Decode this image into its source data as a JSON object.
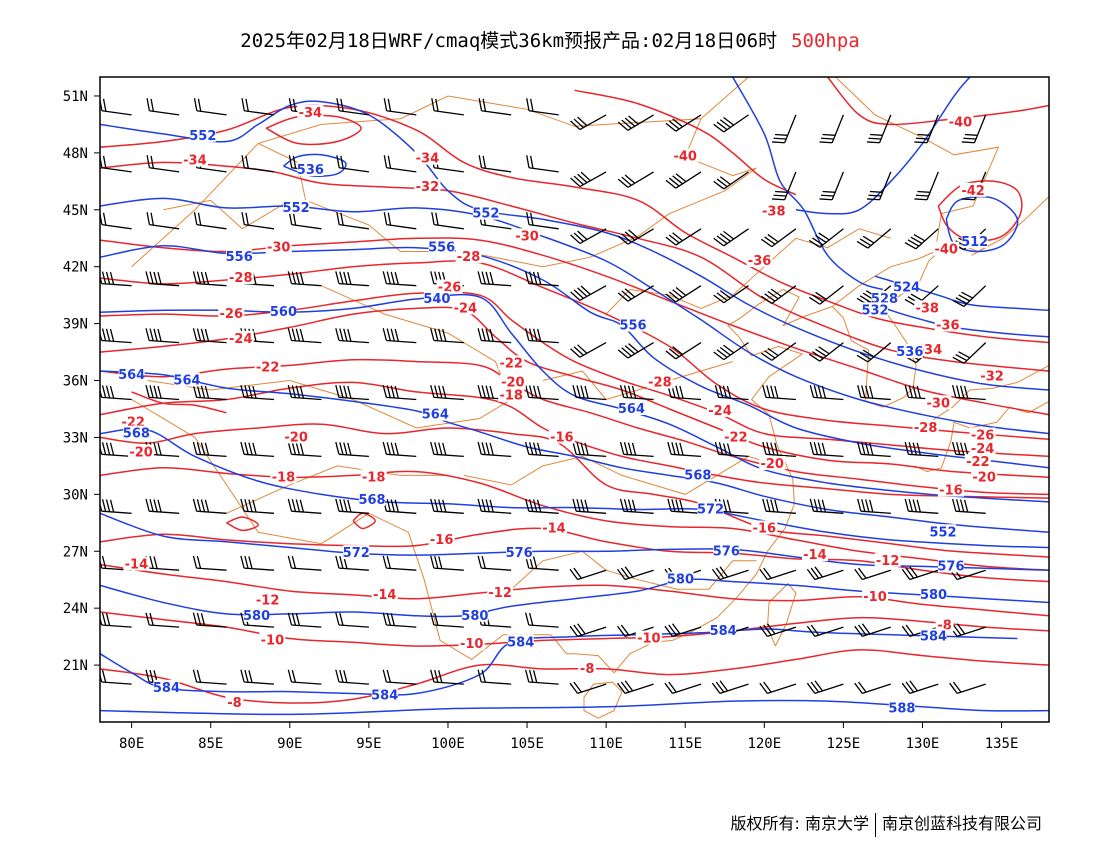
{
  "title": {
    "main": "2025年02月18日WRF/cmaq模式36km预报产品:02月18日06时",
    "level": "500hpa"
  },
  "colors": {
    "geopotential": "#1f3fe0",
    "temperature": "#e8262c",
    "coastline": "#e0893a",
    "barbs": "#000000",
    "level_text": "#e8262c"
  },
  "axes": {
    "lon_labels": [
      "80E",
      "85E",
      "90E",
      "95E",
      "100E",
      "105E",
      "110E",
      "115E",
      "120E",
      "125E",
      "130E",
      "135E"
    ],
    "lat_labels": [
      "51N",
      "48N",
      "45N",
      "42N",
      "39N",
      "36N",
      "33N",
      "30N",
      "27N",
      "24N",
      "21N"
    ],
    "lon_values": [
      80,
      85,
      90,
      95,
      100,
      105,
      110,
      115,
      120,
      125,
      130,
      135
    ],
    "lat_values": [
      51,
      48,
      45,
      42,
      39,
      36,
      33,
      30,
      27,
      24,
      21
    ],
    "lon_range": [
      78,
      138
    ],
    "lat_range": [
      18,
      52
    ]
  },
  "height_labels": [
    {
      "text": "552",
      "lon": 84.5,
      "lat": 48.9
    },
    {
      "text": "552",
      "lon": 90.4,
      "lat": 45.1
    },
    {
      "text": "552",
      "lon": 102.4,
      "lat": 44.8
    },
    {
      "text": "556",
      "lon": 86.8,
      "lat": 42.5
    },
    {
      "text": "556",
      "lon": 99.6,
      "lat": 43.0
    },
    {
      "text": "560",
      "lon": 89.6,
      "lat": 39.6
    },
    {
      "text": "540",
      "lon": 99.3,
      "lat": 40.3
    },
    {
      "text": "556",
      "lon": 111.7,
      "lat": 38.9
    },
    {
      "text": "564",
      "lon": 80.0,
      "lat": 36.3
    },
    {
      "text": "564",
      "lon": 83.5,
      "lat": 36.0
    },
    {
      "text": "564",
      "lon": 99.2,
      "lat": 34.2
    },
    {
      "text": "564",
      "lon": 111.6,
      "lat": 34.5
    },
    {
      "text": "568",
      "lon": 80.3,
      "lat": 33.2
    },
    {
      "text": "568",
      "lon": 95.2,
      "lat": 29.7
    },
    {
      "text": "568",
      "lon": 115.8,
      "lat": 31.0
    },
    {
      "text": "572",
      "lon": 94.2,
      "lat": 26.9
    },
    {
      "text": "572",
      "lon": 116.6,
      "lat": 29.2
    },
    {
      "text": "576",
      "lon": 104.5,
      "lat": 26.9
    },
    {
      "text": "576",
      "lon": 117.6,
      "lat": 27.0
    },
    {
      "text": "576",
      "lon": 131.8,
      "lat": 26.2
    },
    {
      "text": "580",
      "lon": 87.9,
      "lat": 23.6
    },
    {
      "text": "580",
      "lon": 101.7,
      "lat": 23.6
    },
    {
      "text": "580",
      "lon": 114.7,
      "lat": 25.5
    },
    {
      "text": "580",
      "lon": 130.7,
      "lat": 24.7
    },
    {
      "text": "584",
      "lon": 82.2,
      "lat": 19.8
    },
    {
      "text": "584",
      "lon": 96.0,
      "lat": 19.4
    },
    {
      "text": "584",
      "lon": 104.6,
      "lat": 22.2
    },
    {
      "text": "584",
      "lon": 117.4,
      "lat": 22.8
    },
    {
      "text": "584",
      "lon": 130.7,
      "lat": 22.5
    },
    {
      "text": "588",
      "lon": 128.7,
      "lat": 18.7
    },
    {
      "text": "536",
      "lon": 91.3,
      "lat": 47.1
    },
    {
      "text": "512",
      "lon": 133.3,
      "lat": 43.3
    },
    {
      "text": "524",
      "lon": 129.0,
      "lat": 40.9
    },
    {
      "text": "528",
      "lon": 127.6,
      "lat": 40.3
    },
    {
      "text": "532",
      "lon": 127.0,
      "lat": 39.7
    },
    {
      "text": "536",
      "lon": 129.2,
      "lat": 37.5
    },
    {
      "text": "552",
      "lon": 131.3,
      "lat": 28.0
    }
  ],
  "temperature_labels": [
    {
      "text": "-34",
      "lon": 91.3,
      "lat": 50.1
    },
    {
      "text": "-34",
      "lon": 84.0,
      "lat": 47.6
    },
    {
      "text": "-34",
      "lon": 98.7,
      "lat": 47.7
    },
    {
      "text": "-32",
      "lon": 98.7,
      "lat": 46.2
    },
    {
      "text": "-30",
      "lon": 89.3,
      "lat": 43.0
    },
    {
      "text": "-30",
      "lon": 105.0,
      "lat": 43.6
    },
    {
      "text": "-28",
      "lon": 86.9,
      "lat": 41.4
    },
    {
      "text": "-28",
      "lon": 101.3,
      "lat": 42.5
    },
    {
      "text": "-26",
      "lon": 86.3,
      "lat": 39.5
    },
    {
      "text": "-26",
      "lon": 100.1,
      "lat": 40.9
    },
    {
      "text": "-24",
      "lon": 86.9,
      "lat": 38.2
    },
    {
      "text": "-24",
      "lon": 101.1,
      "lat": 39.8
    },
    {
      "text": "-22",
      "lon": 88.6,
      "lat": 36.7
    },
    {
      "text": "-22",
      "lon": 104.0,
      "lat": 36.9
    },
    {
      "text": "-20",
      "lon": 104.1,
      "lat": 35.9
    },
    {
      "text": "-18",
      "lon": 104.0,
      "lat": 35.2
    },
    {
      "text": "-22",
      "lon": 80.1,
      "lat": 33.8
    },
    {
      "text": "-20",
      "lon": 80.6,
      "lat": 32.2
    },
    {
      "text": "-20",
      "lon": 90.4,
      "lat": 33.0
    },
    {
      "text": "-18",
      "lon": 89.6,
      "lat": 30.9
    },
    {
      "text": "-18",
      "lon": 95.3,
      "lat": 30.9
    },
    {
      "text": "-16",
      "lon": 107.2,
      "lat": 33.0
    },
    {
      "text": "-16",
      "lon": 99.6,
      "lat": 27.6
    },
    {
      "text": "-14",
      "lon": 106.7,
      "lat": 28.2
    },
    {
      "text": "-14",
      "lon": 80.3,
      "lat": 26.3
    },
    {
      "text": "-14",
      "lon": 96.0,
      "lat": 24.7
    },
    {
      "text": "-12",
      "lon": 88.6,
      "lat": 24.4
    },
    {
      "text": "-12",
      "lon": 103.3,
      "lat": 24.8
    },
    {
      "text": "-10",
      "lon": 88.9,
      "lat": 22.3
    },
    {
      "text": "-10",
      "lon": 101.5,
      "lat": 22.1
    },
    {
      "text": "-10",
      "lon": 112.7,
      "lat": 22.4
    },
    {
      "text": "-8",
      "lon": 86.5,
      "lat": 19.0
    },
    {
      "text": "-8",
      "lon": 108.8,
      "lat": 20.8
    },
    {
      "text": "-40",
      "lon": 115.0,
      "lat": 47.8
    },
    {
      "text": "-40",
      "lon": 132.4,
      "lat": 49.6
    },
    {
      "text": "-38",
      "lon": 120.6,
      "lat": 44.9
    },
    {
      "text": "-36",
      "lon": 119.7,
      "lat": 42.3
    },
    {
      "text": "-42",
      "lon": 133.2,
      "lat": 46.0
    },
    {
      "text": "-40",
      "lon": 131.5,
      "lat": 42.9
    },
    {
      "text": "-38",
      "lon": 130.3,
      "lat": 39.8
    },
    {
      "text": "-36",
      "lon": 131.6,
      "lat": 38.9
    },
    {
      "text": "-34",
      "lon": 130.5,
      "lat": 37.6
    },
    {
      "text": "-32",
      "lon": 134.4,
      "lat": 36.2
    },
    {
      "text": "-28",
      "lon": 113.4,
      "lat": 35.9
    },
    {
      "text": "-24",
      "lon": 117.2,
      "lat": 34.4
    },
    {
      "text": "-22",
      "lon": 118.2,
      "lat": 33.0
    },
    {
      "text": "-20",
      "lon": 120.5,
      "lat": 31.6
    },
    {
      "text": "-30",
      "lon": 131.0,
      "lat": 34.8
    },
    {
      "text": "-28",
      "lon": 130.2,
      "lat": 33.5
    },
    {
      "text": "-26",
      "lon": 133.8,
      "lat": 33.1
    },
    {
      "text": "-24",
      "lon": 133.8,
      "lat": 32.4
    },
    {
      "text": "-22",
      "lon": 133.5,
      "lat": 31.7
    },
    {
      "text": "-20",
      "lon": 133.9,
      "lat": 30.9
    },
    {
      "text": "-16",
      "lon": 131.8,
      "lat": 30.2
    },
    {
      "text": "-16",
      "lon": 120.0,
      "lat": 28.2
    },
    {
      "text": "-14",
      "lon": 123.2,
      "lat": 26.8
    },
    {
      "text": "-12",
      "lon": 127.8,
      "lat": 26.5
    },
    {
      "text": "-10",
      "lon": 127.0,
      "lat": 24.6
    },
    {
      "text": "-8",
      "lon": 131.4,
      "lat": 23.1
    }
  ],
  "footer": {
    "copyright_label": "版权所有: 南京大学",
    "company": "南京创蓝科技有限公司"
  }
}
